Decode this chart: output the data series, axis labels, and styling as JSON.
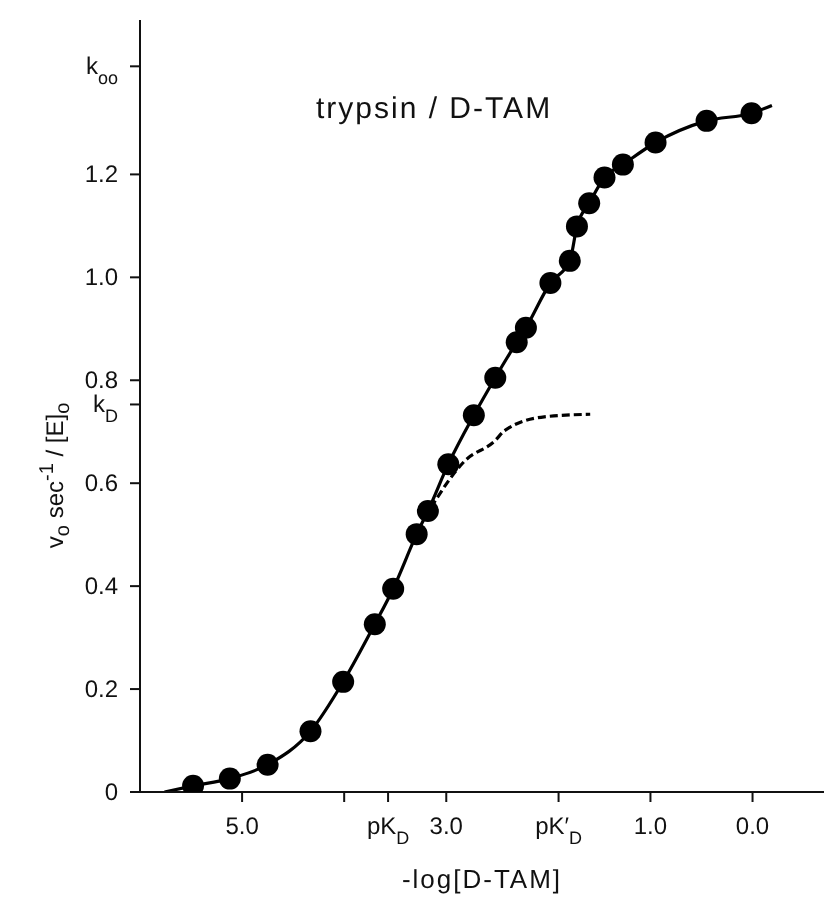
{
  "chart_data": {
    "type": "line",
    "title": "trypsin / D-TAM",
    "xlabel": "-log[D-TAM]",
    "ylabel": "v$_{o}$ sec$^{-1}$ / [E]$_{o}$",
    "xlim": [
      6.0,
      -0.7
    ],
    "ylim": [
      0,
      1.5
    ],
    "xticks": [
      {
        "value": 5,
        "label": "5.0"
      },
      {
        "value": 3,
        "label": "3.0"
      },
      {
        "value": 1,
        "label": "1.0"
      },
      {
        "value": 0,
        "label": "0.0"
      },
      {
        "value": 4,
        "label": null
      },
      {
        "value": 3.57,
        "label": "pK$_{D}$"
      },
      {
        "value": 1.9,
        "label": "pK′$_{D}$"
      }
    ],
    "yticks": [
      0,
      0.2,
      0.4,
      0.6,
      0.8,
      {
        "value": 1,
        "label": "1.0"
      },
      1.2,
      {
        "value": 0.753,
        "label": "k$_{D}$"
      },
      {
        "value": 1.41,
        "label": "k$_{oo}$"
      }
    ],
    "series": [
      {
        "color": "#000000",
        "marker": "none",
        "line_style": "solid",
        "x": [
          5.76,
          5.48,
          5.12,
          4.75,
          4.33,
          4.01,
          3.7,
          3.52,
          3.29,
          3.18,
          2.98,
          2.73,
          2.52,
          2.31,
          2.22,
          1.98,
          1.79,
          1.72,
          1.6,
          1.45,
          1.27,
          0.95,
          0.45,
          0.01,
          -0.19
        ],
        "values": [
          0,
          0.012,
          0.026,
          0.053,
          0.118,
          0.214,
          0.326,
          0.395,
          0.501,
          0.546,
          0.637,
          0.732,
          0.805,
          0.874,
          0.902,
          0.989,
          1.032,
          1.099,
          1.144,
          1.194,
          1.219,
          1.262,
          1.304,
          1.319,
          1.334
        ]
      },
      {
        "color": "#000000",
        "marker": "none",
        "line_style": "dashed",
        "x": [
          3.15,
          2.82,
          2.52,
          2.43,
          2.04,
          1.59
        ],
        "values": [
          0.553,
          0.643,
          0.683,
          0.702,
          0.729,
          0.734
        ]
      },
      {
        "type": "scatter",
        "color": "#000000",
        "marker": "circle",
        "x": [
          5.48,
          5.12,
          4.75,
          4.33,
          4.01,
          3.7,
          3.52,
          3.29,
          3.18,
          2.98,
          2.73,
          2.52,
          2.31,
          2.22,
          1.98,
          1.79,
          1.72,
          1.6,
          1.45,
          1.27,
          0.95,
          0.45,
          0.01
        ],
        "values": [
          0.012,
          0.026,
          0.053,
          0.118,
          0.214,
          0.326,
          0.395,
          0.501,
          0.546,
          0.637,
          0.732,
          0.805,
          0.874,
          0.902,
          0.989,
          1.032,
          1.099,
          1.144,
          1.194,
          1.219,
          1.262,
          1.304,
          1.319
        ]
      }
    ]
  }
}
